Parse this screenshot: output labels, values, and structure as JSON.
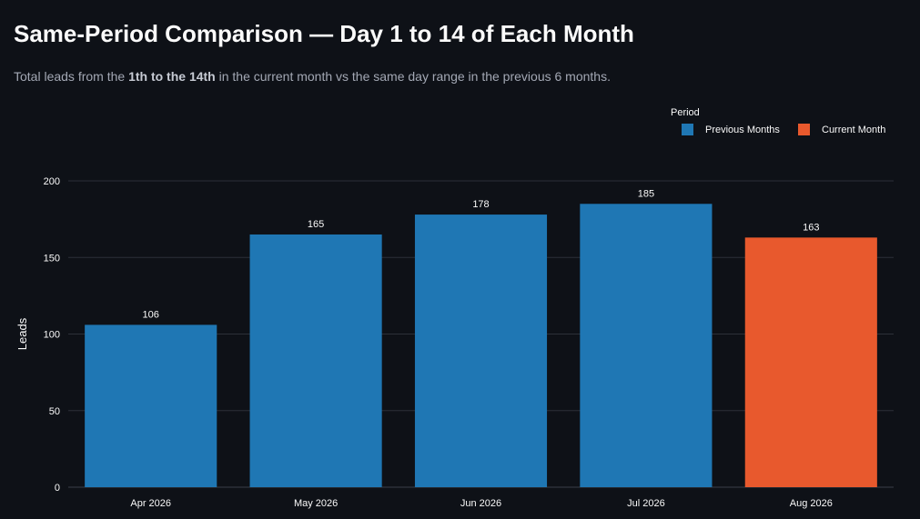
{
  "page": {
    "title": "Same-Period Comparison — Day 1 to 14 of Each Month",
    "subtitle_before": "Total leads from the ",
    "subtitle_bold": "1th to the 14th",
    "subtitle_after": " in the current month vs the same day range in the previous 6 months."
  },
  "colors": {
    "background": "#0e1117",
    "previous": "#1f77b4",
    "current": "#e8592d",
    "grid": "#2c3038",
    "text": "#fafafa"
  },
  "chart_data": {
    "type": "bar",
    "categories": [
      "Apr 2026",
      "May 2026",
      "Jun 2026",
      "Jul 2026",
      "Aug 2026"
    ],
    "values": [
      106,
      165,
      178,
      185,
      163
    ],
    "groups": [
      "Previous Months",
      "Previous Months",
      "Previous Months",
      "Previous Months",
      "Current Month"
    ],
    "data_labels": [
      "106",
      "165",
      "178",
      "185",
      "163"
    ],
    "ylabel": "Leads",
    "xlabel": "",
    "ylim": [
      0,
      200
    ],
    "yticks": [
      0,
      50,
      100,
      150,
      200
    ],
    "grid": true,
    "legend": {
      "title": "Period",
      "placement": "top-right",
      "entries": [
        {
          "name": "Previous Months",
          "color": "#1f77b4"
        },
        {
          "name": "Current Month",
          "color": "#e8592d"
        }
      ]
    }
  }
}
